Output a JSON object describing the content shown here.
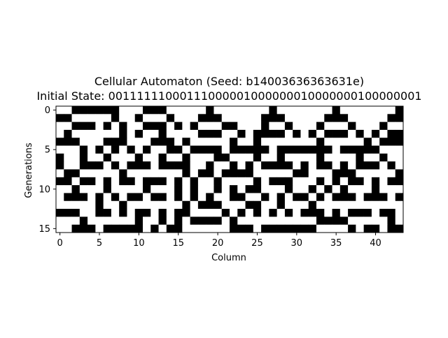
{
  "chart_data": {
    "type": "heatmap",
    "title": "Cellular Automaton (Seed: b14003636363631e)",
    "subtitle": "Initial State: 00111111000111000001000000010000000100000001",
    "xlabel": "Column",
    "ylabel": "Generations",
    "xlim": [
      -0.5,
      43.5
    ],
    "ylim": [
      15.5,
      -0.5
    ],
    "x_ticks": [
      0,
      5,
      10,
      15,
      20,
      25,
      30,
      35,
      40
    ],
    "y_ticks": [
      0,
      5,
      10,
      15
    ],
    "colormap": {
      "0": "#ffffff",
      "1": "#000000"
    },
    "grid": false,
    "cells": [
      "00111111000111000001000000010000000100000001",
      "11000001001000100011100000111000001110000011",
      "00111010100111010100011000100100010001000100",
      "01000000101001000011100101111010101110101011",
      "11100011100011101000001001000000010000010111",
      "00010101010100110111101111101111111011111000",
      "10010010001001001000110001001000010000100100",
      "10011101011101111001001010111101011010111010",
      "01100000100000001011011110000011000111000001",
      "11011010110111010100100001011100010101101011",
      "00100010000100010100101011000100101010001000",
      "01110101011011010101001100101011010111011101",
      "00000100100000001011100011001000100000000000",
      "11100110101101011000010101010101110101110110",
      "00010000001001010111101000000000011110000010",
      "00111011111010110000001110111111100001011011"
    ]
  }
}
